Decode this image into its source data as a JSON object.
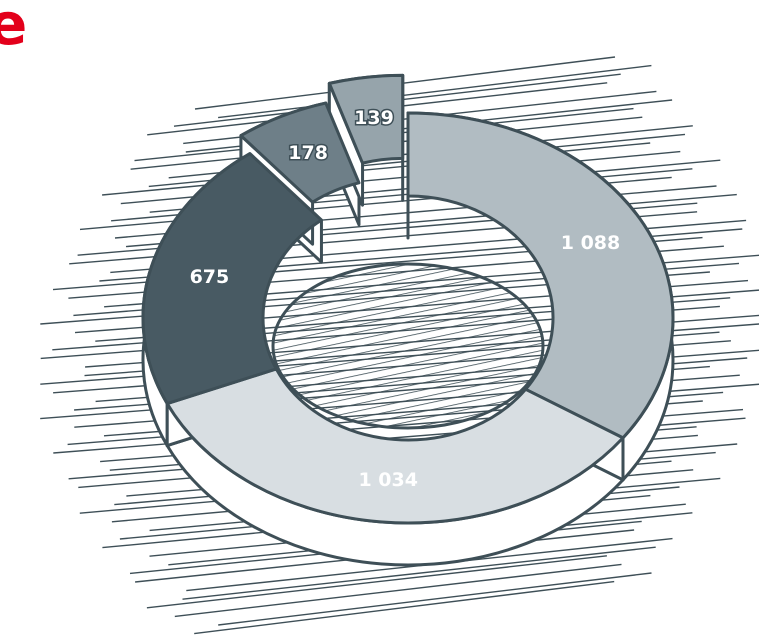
{
  "brand": {
    "letter": "e",
    "color": "#e3001b"
  },
  "chart_data": {
    "type": "pie",
    "style": "3d-donut-exploded",
    "title": "",
    "slices": [
      {
        "label": "1 088",
        "value": 1088,
        "color": "#b1bcc2"
      },
      {
        "label": "1 034",
        "value": 1034,
        "color": "#d8dee2"
      },
      {
        "label": "675",
        "value": 675,
        "color": "#485a63"
      },
      {
        "label": "178",
        "value": 178,
        "color": "#6e7f88"
      },
      {
        "label": "139",
        "value": 139,
        "color": "#96a4ab"
      }
    ],
    "label_colors": [
      "#ffffff",
      "#ffffff",
      "#ffffff",
      "#ffffff",
      "#ffffff"
    ],
    "outline_color": "#3e4f57",
    "side_color": "#ffffff",
    "hatch_color": "#3e4f57"
  }
}
